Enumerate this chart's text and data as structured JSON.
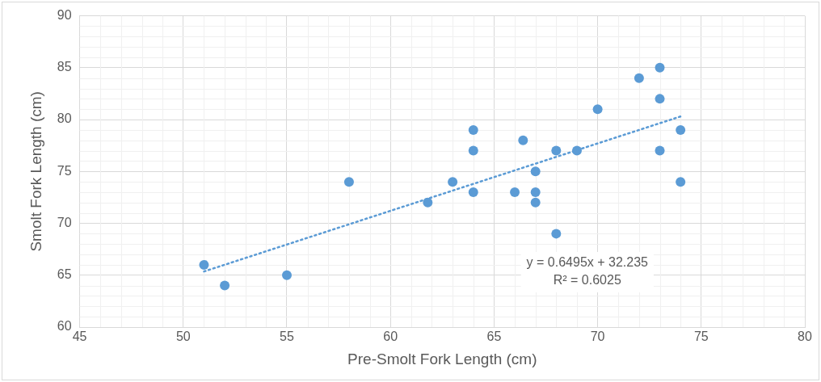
{
  "chart_data": {
    "type": "scatter",
    "xlabel": "Pre-Smolt Fork Length (cm)",
    "ylabel": "Smolt Fork Length (cm)",
    "xlim": [
      45,
      80
    ],
    "xticks": [
      45,
      50,
      55,
      60,
      65,
      70,
      75,
      80
    ],
    "ylim": [
      60,
      90
    ],
    "yticks": [
      60,
      65,
      70,
      75,
      80,
      85,
      90
    ],
    "grid": true,
    "legend": false,
    "marker": "circle",
    "series": [
      {
        "color": "#5b9bd5",
        "x": [
          51,
          52,
          55,
          58,
          61.8,
          63,
          64,
          64,
          64,
          66,
          66.4,
          67,
          67,
          67,
          68,
          68,
          69,
          70,
          72,
          73,
          73,
          73,
          74,
          74
        ],
        "values": [
          66,
          64,
          65,
          74,
          72,
          74,
          79,
          77,
          73,
          73,
          78,
          75,
          73,
          72,
          77,
          69,
          77,
          81,
          84,
          85,
          82,
          77,
          79,
          74
        ]
      },
      {
        "type": "line",
        "color": "#5b9bd5",
        "line_style": "dotted",
        "marker": "none",
        "x": [
          51,
          74
        ],
        "values": [
          65.36,
          80.3
        ]
      }
    ],
    "annotations": [
      "y = 0.6495x + 32.235",
      "R² = 0.6025"
    ]
  }
}
